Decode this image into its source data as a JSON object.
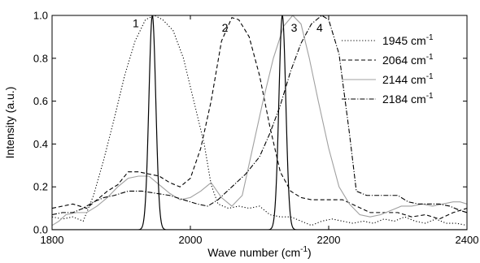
{
  "chart_data": {
    "type": "line",
    "xlabel": "Wave number (cm",
    "xlabel_sup": "-1",
    "xlabel_end": ")",
    "ylabel": "Intensity (a.u.)",
    "xlim": [
      1800,
      2400
    ],
    "ylim": [
      0,
      1.0
    ],
    "x_ticks": [
      1800,
      2000,
      2200,
      2400
    ],
    "x_tick_labels": [
      "1800",
      "2000",
      "2200",
      "2400"
    ],
    "y_ticks": [
      0.0,
      0.2,
      0.4,
      0.6,
      0.8,
      1.0
    ],
    "y_tick_labels": [
      "0.0",
      "0.2",
      "0.4",
      "0.6",
      "0.8",
      "1.0"
    ],
    "legend_position": "top-right",
    "grid": false,
    "peak_labels": [
      {
        "text": "1",
        "x": 1921,
        "y": 0.945
      },
      {
        "text": "2",
        "x": 2050,
        "y": 0.925
      },
      {
        "text": "3",
        "x": 2150,
        "y": 0.925
      },
      {
        "text": "4",
        "x": 2187,
        "y": 0.925
      }
    ],
    "series": [
      {
        "name": "1945 cm",
        "name_sup": "-1",
        "style": "dotted",
        "color": "#000000",
        "points": [
          [
            1800,
            0.06
          ],
          [
            1815,
            0.05
          ],
          [
            1830,
            0.06
          ],
          [
            1845,
            0.04
          ],
          [
            1860,
            0.16
          ],
          [
            1875,
            0.33
          ],
          [
            1890,
            0.52
          ],
          [
            1905,
            0.72
          ],
          [
            1920,
            0.88
          ],
          [
            1935,
            0.98
          ],
          [
            1948,
            1.0
          ],
          [
            1960,
            0.98
          ],
          [
            1975,
            0.93
          ],
          [
            1990,
            0.8
          ],
          [
            2005,
            0.6
          ],
          [
            2020,
            0.4
          ],
          [
            2030,
            0.21
          ],
          [
            2040,
            0.12
          ],
          [
            2055,
            0.1
          ],
          [
            2070,
            0.11
          ],
          [
            2085,
            0.1
          ],
          [
            2100,
            0.11
          ],
          [
            2115,
            0.07
          ],
          [
            2130,
            0.06
          ],
          [
            2145,
            0.06
          ],
          [
            2160,
            0.04
          ],
          [
            2175,
            0.02
          ],
          [
            2190,
            0.04
          ],
          [
            2205,
            0.05
          ],
          [
            2220,
            0.04
          ],
          [
            2235,
            0.03
          ],
          [
            2250,
            0.04
          ],
          [
            2265,
            0.03
          ],
          [
            2280,
            0.05
          ],
          [
            2295,
            0.04
          ],
          [
            2310,
            0.06
          ],
          [
            2325,
            0.04
          ],
          [
            2340,
            0.03
          ],
          [
            2355,
            0.05
          ],
          [
            2370,
            0.03
          ],
          [
            2385,
            0.03
          ],
          [
            2400,
            0.02
          ]
        ]
      },
      {
        "name": "2064 cm",
        "name_sup": "-1",
        "style": "dashed",
        "color": "#000000",
        "points": [
          [
            1800,
            0.1
          ],
          [
            1815,
            0.11
          ],
          [
            1830,
            0.12
          ],
          [
            1850,
            0.1
          ],
          [
            1865,
            0.14
          ],
          [
            1880,
            0.18
          ],
          [
            1895,
            0.21
          ],
          [
            1910,
            0.27
          ],
          [
            1925,
            0.27
          ],
          [
            1940,
            0.26
          ],
          [
            1955,
            0.25
          ],
          [
            1970,
            0.22
          ],
          [
            1985,
            0.2
          ],
          [
            2000,
            0.24
          ],
          [
            2015,
            0.38
          ],
          [
            2030,
            0.6
          ],
          [
            2045,
            0.88
          ],
          [
            2060,
            0.99
          ],
          [
            2070,
            0.98
          ],
          [
            2085,
            0.9
          ],
          [
            2100,
            0.72
          ],
          [
            2115,
            0.48
          ],
          [
            2130,
            0.27
          ],
          [
            2145,
            0.18
          ],
          [
            2160,
            0.15
          ],
          [
            2175,
            0.14
          ],
          [
            2190,
            0.14
          ],
          [
            2205,
            0.14
          ],
          [
            2220,
            0.14
          ],
          [
            2240,
            0.11
          ],
          [
            2260,
            0.08
          ],
          [
            2280,
            0.08
          ],
          [
            2300,
            0.08
          ],
          [
            2320,
            0.06
          ],
          [
            2340,
            0.07
          ],
          [
            2360,
            0.05
          ],
          [
            2380,
            0.08
          ],
          [
            2400,
            0.1
          ]
        ]
      },
      {
        "name": "2144 cm",
        "name_sup": "-1",
        "style": "solid",
        "color": "#a0a0a0",
        "points": [
          [
            1800,
            0.02
          ],
          [
            1810,
            0.04
          ],
          [
            1820,
            0.07
          ],
          [
            1835,
            0.08
          ],
          [
            1850,
            0.08
          ],
          [
            1865,
            0.11
          ],
          [
            1880,
            0.15
          ],
          [
            1895,
            0.2
          ],
          [
            1910,
            0.24
          ],
          [
            1925,
            0.25
          ],
          [
            1940,
            0.25
          ],
          [
            1955,
            0.21
          ],
          [
            1970,
            0.17
          ],
          [
            1985,
            0.14
          ],
          [
            2000,
            0.15
          ],
          [
            2015,
            0.18
          ],
          [
            2030,
            0.22
          ],
          [
            2045,
            0.15
          ],
          [
            2060,
            0.11
          ],
          [
            2075,
            0.16
          ],
          [
            2090,
            0.38
          ],
          [
            2105,
            0.6
          ],
          [
            2120,
            0.8
          ],
          [
            2135,
            0.95
          ],
          [
            2148,
            1.0
          ],
          [
            2160,
            0.96
          ],
          [
            2172,
            0.8
          ],
          [
            2185,
            0.6
          ],
          [
            2200,
            0.38
          ],
          [
            2215,
            0.2
          ],
          [
            2230,
            0.12
          ],
          [
            2245,
            0.07
          ],
          [
            2260,
            0.06
          ],
          [
            2275,
            0.07
          ],
          [
            2290,
            0.09
          ],
          [
            2305,
            0.11
          ],
          [
            2320,
            0.11
          ],
          [
            2335,
            0.12
          ],
          [
            2350,
            0.11
          ],
          [
            2365,
            0.12
          ],
          [
            2380,
            0.13
          ],
          [
            2390,
            0.13
          ],
          [
            2400,
            0.12
          ]
        ]
      },
      {
        "name": "2184 cm",
        "name_sup": "-1",
        "style": "dashdot",
        "color": "#000000",
        "points": [
          [
            1800,
            0.07
          ],
          [
            1815,
            0.08
          ],
          [
            1830,
            0.08
          ],
          [
            1845,
            0.1
          ],
          [
            1860,
            0.13
          ],
          [
            1875,
            0.15
          ],
          [
            1890,
            0.16
          ],
          [
            1910,
            0.18
          ],
          [
            1930,
            0.18
          ],
          [
            1950,
            0.17
          ],
          [
            1970,
            0.16
          ],
          [
            1990,
            0.14
          ],
          [
            2010,
            0.12
          ],
          [
            2025,
            0.11
          ],
          [
            2040,
            0.14
          ],
          [
            2060,
            0.2
          ],
          [
            2080,
            0.26
          ],
          [
            2100,
            0.34
          ],
          [
            2115,
            0.45
          ],
          [
            2130,
            0.58
          ],
          [
            2145,
            0.74
          ],
          [
            2160,
            0.87
          ],
          [
            2175,
            0.96
          ],
          [
            2190,
            1.0
          ],
          [
            2200,
            0.98
          ],
          [
            2215,
            0.82
          ],
          [
            2230,
            0.45
          ],
          [
            2240,
            0.18
          ],
          [
            2255,
            0.16
          ],
          [
            2270,
            0.16
          ],
          [
            2285,
            0.16
          ],
          [
            2300,
            0.16
          ],
          [
            2315,
            0.13
          ],
          [
            2330,
            0.12
          ],
          [
            2345,
            0.12
          ],
          [
            2360,
            0.12
          ],
          [
            2375,
            0.11
          ],
          [
            2390,
            0.09
          ],
          [
            2400,
            0.08
          ]
        ]
      },
      {
        "name": "",
        "legend": false,
        "style": "solid",
        "color": "#000000",
        "gaussians": [
          {
            "center": 1945,
            "sigma": 5,
            "amplitude": 1.0
          },
          {
            "center": 2133,
            "sigma": 5,
            "amplitude": 1.0
          }
        ]
      }
    ]
  }
}
